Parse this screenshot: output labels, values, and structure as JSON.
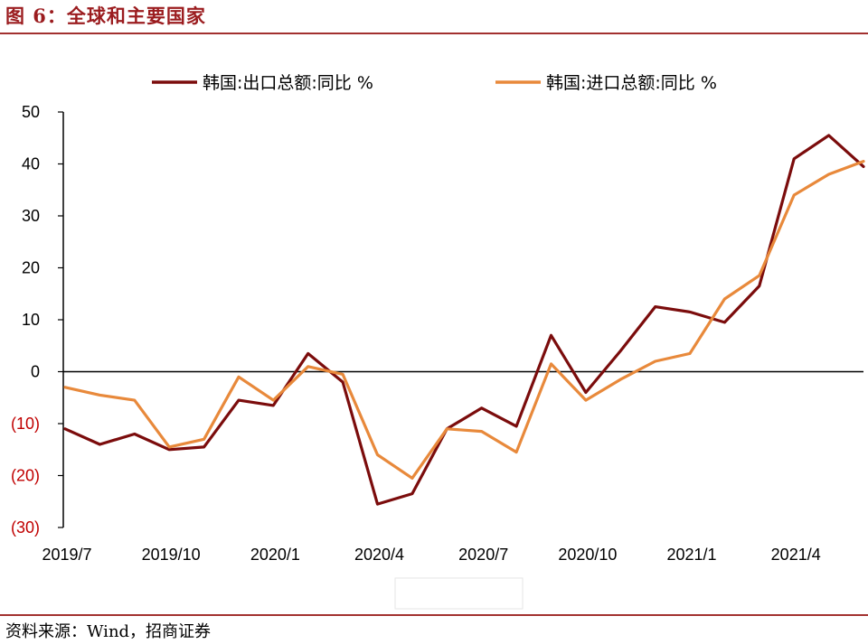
{
  "figure": {
    "title": "图 6：全球和主要国家",
    "source": "资料来源：Wind，招商证券"
  },
  "chart_data": {
    "type": "line",
    "x": [
      "2019/7",
      "2019/8",
      "2019/9",
      "2019/10",
      "2019/11",
      "2019/12",
      "2020/1",
      "2020/2",
      "2020/3",
      "2020/4",
      "2020/5",
      "2020/6",
      "2020/7",
      "2020/8",
      "2020/9",
      "2020/10",
      "2020/11",
      "2020/12",
      "2021/1",
      "2021/2",
      "2021/3",
      "2021/4",
      "2021/5",
      "2021/6"
    ],
    "x_tick_labels": [
      "2019/7",
      "2019/10",
      "2020/1",
      "2020/4",
      "2020/7",
      "2020/10",
      "2021/1",
      "2021/4"
    ],
    "x_tick_indices": [
      0,
      3,
      6,
      9,
      12,
      15,
      18,
      21
    ],
    "y_tick_labels": [
      "50",
      "40",
      "30",
      "20",
      "10",
      "0",
      "(10)",
      "(20)",
      "(30)"
    ],
    "y_tick_values": [
      50,
      40,
      30,
      20,
      10,
      0,
      -10,
      -20,
      -30
    ],
    "ylim": [
      -30,
      50
    ],
    "negative_label_color": "#c00000",
    "legend_position": "top",
    "series": [
      {
        "name": "韩国:出口总额:同比 %",
        "color": "#7b0c0c",
        "values": [
          -11,
          -14,
          -12,
          -15,
          -14.5,
          -5.5,
          -6.5,
          3.5,
          -2,
          -25.5,
          -23.5,
          -11,
          -7,
          -10.5,
          7,
          -4,
          4,
          12.5,
          11.5,
          9.5,
          16.5,
          41,
          45.5,
          39.5
        ]
      },
      {
        "name": "韩国:进口总额:同比 %",
        "color": "#e8893b",
        "values": [
          -3,
          -4.5,
          -5.5,
          -14.5,
          -13,
          -1,
          -5.5,
          1,
          -0.5,
          -16,
          -20.5,
          -11,
          -11.5,
          -15.5,
          1.5,
          -5.5,
          -1.5,
          2,
          3.5,
          14,
          18.5,
          34,
          38,
          40.5
        ]
      }
    ]
  }
}
